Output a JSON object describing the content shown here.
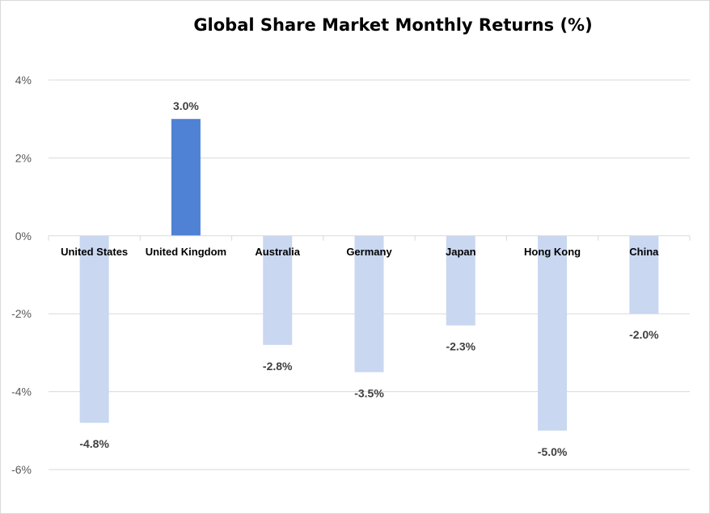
{
  "chart_data": {
    "type": "bar",
    "title": "Global Share Market Monthly Returns (%)",
    "categories": [
      "United States",
      "United Kingdom",
      "Australia",
      "Germany",
      "Japan",
      "Hong Kong",
      "China"
    ],
    "values": [
      -4.8,
      3.0,
      -2.8,
      -3.5,
      -2.3,
      -5.0,
      -2.0
    ],
    "data_labels": [
      "-4.8%",
      "3.0%",
      "-2.8%",
      "-3.5%",
      "-2.3%",
      "-5.0%",
      "-2.0%"
    ],
    "xlabel": "",
    "ylabel": "",
    "ylim": [
      -6,
      4
    ],
    "yticks": [
      4,
      2,
      0,
      -2,
      -4,
      -6
    ],
    "ytick_labels": [
      "4%",
      "2%",
      "0%",
      "-2%",
      "-4%",
      "-6%"
    ],
    "grid": true,
    "legend": "none",
    "colors": {
      "positive": "#4f81d4",
      "negative": "#c9d7f1",
      "gridline": "#d9d9d9",
      "axis": "#d9d9d9"
    }
  }
}
